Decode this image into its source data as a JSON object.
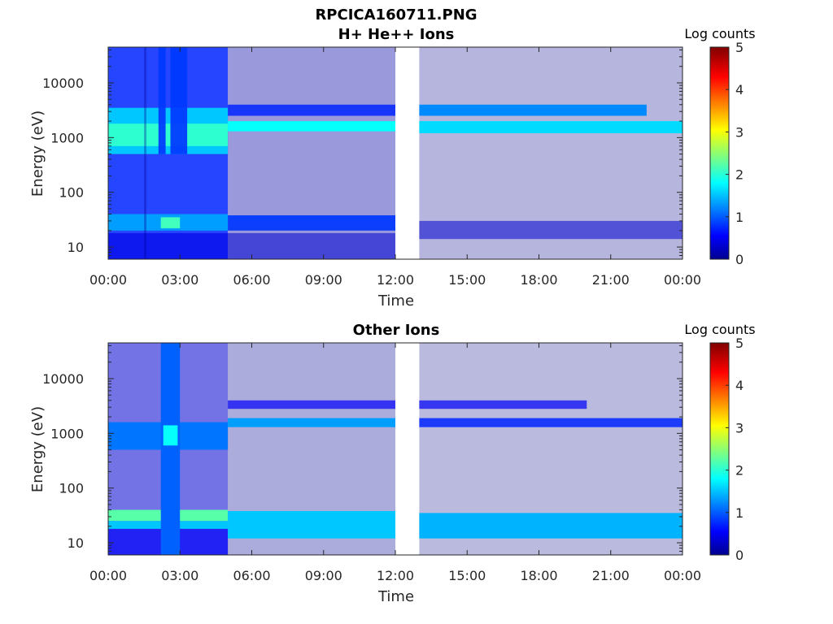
{
  "figure": {
    "title": "RPCICA160711.PNG"
  },
  "chart_data": [
    {
      "type": "heatmap",
      "title": "H+ He++ Ions",
      "xlabel": "Time",
      "ylabel": "Energy (eV)",
      "xlim": [
        "00:00",
        "24:00"
      ],
      "ylim": [
        6,
        45000
      ],
      "yscale": "log",
      "x_ticks": [
        "00:00",
        "03:00",
        "06:00",
        "09:00",
        "12:00",
        "15:00",
        "18:00",
        "21:00",
        "00:00"
      ],
      "y_ticks": [
        "10",
        "100",
        "1000",
        "10000"
      ],
      "data_gap_hours": [
        12.0,
        13.0
      ],
      "colorbar": {
        "label": "Log counts",
        "range": [
          0,
          5
        ],
        "ticks": [
          "0",
          "1",
          "2",
          "3",
          "4",
          "5"
        ],
        "colormap": "jet"
      },
      "bands": [
        {
          "t_start": 0.0,
          "t_end": 5.0,
          "e_low": 6,
          "e_high": 45000,
          "level": 0.8
        },
        {
          "t_start": 0.0,
          "t_end": 5.0,
          "e_low": 500,
          "e_high": 3500,
          "level": 1.6
        },
        {
          "t_start": 0.0,
          "t_end": 5.0,
          "e_low": 700,
          "e_high": 1800,
          "level": 2.1
        },
        {
          "t_start": 0.0,
          "t_end": 5.0,
          "e_low": 20,
          "e_high": 40,
          "level": 1.4
        },
        {
          "t_start": 2.2,
          "t_end": 3.0,
          "e_low": 22,
          "e_high": 35,
          "level": 2.2
        },
        {
          "t_start": 0.0,
          "t_end": 5.0,
          "e_low": 6,
          "e_high": 18,
          "level": 0.5
        },
        {
          "t_start": 5.0,
          "t_end": 12.0,
          "e_low": 6,
          "e_high": 45000,
          "level": 0.2
        },
        {
          "t_start": 5.0,
          "t_end": 12.0,
          "e_low": 1300,
          "e_high": 2000,
          "level": 1.9
        },
        {
          "t_start": 5.0,
          "t_end": 12.0,
          "e_low": 2500,
          "e_high": 4000,
          "level": 0.8
        },
        {
          "t_start": 5.0,
          "t_end": 12.0,
          "e_low": 20,
          "e_high": 38,
          "level": 0.9
        },
        {
          "t_start": 5.0,
          "t_end": 12.0,
          "e_low": 6,
          "e_high": 18,
          "level": 0.4
        },
        {
          "t_start": 13.0,
          "t_end": 24.0,
          "e_low": 6,
          "e_high": 45000,
          "level": 0.05
        },
        {
          "t_start": 13.0,
          "t_end": 22.5,
          "e_low": 2500,
          "e_high": 4000,
          "level": 1.3
        },
        {
          "t_start": 13.0,
          "t_end": 24.0,
          "e_low": 1200,
          "e_high": 2000,
          "level": 1.7
        },
        {
          "t_start": 13.0,
          "t_end": 24.0,
          "e_low": 14,
          "e_high": 30,
          "level": 0.4
        }
      ],
      "spikes": [
        {
          "t_start": 2.1,
          "t_end": 2.4,
          "e_low": 500,
          "e_high": 45000,
          "level": 0.9
        },
        {
          "t_start": 2.6,
          "t_end": 3.3,
          "e_low": 500,
          "e_high": 45000,
          "level": 0.9
        },
        {
          "t_start": 1.5,
          "t_end": 1.6,
          "e_low": 6,
          "e_high": 45000,
          "level": 0.1
        }
      ]
    },
    {
      "type": "heatmap",
      "title": "Other Ions",
      "xlabel": "Time",
      "ylabel": "Energy (eV)",
      "xlim": [
        "00:00",
        "24:00"
      ],
      "ylim": [
        6,
        45000
      ],
      "yscale": "log",
      "x_ticks": [
        "00:00",
        "03:00",
        "06:00",
        "09:00",
        "12:00",
        "15:00",
        "18:00",
        "21:00",
        "00:00"
      ],
      "y_ticks": [
        "10",
        "100",
        "1000",
        "10000"
      ],
      "data_gap_hours": [
        12.0,
        13.0
      ],
      "colorbar": {
        "label": "Log counts",
        "range": [
          0,
          5
        ],
        "ticks": [
          "0",
          "1",
          "2",
          "3",
          "4",
          "5"
        ],
        "colormap": "jet"
      },
      "bands": [
        {
          "t_start": 0.0,
          "t_end": 5.0,
          "e_low": 6,
          "e_high": 45000,
          "level": 0.4
        },
        {
          "t_start": 0.0,
          "t_end": 5.0,
          "e_low": 500,
          "e_high": 1600,
          "level": 1.2
        },
        {
          "t_start": 0.0,
          "t_end": 5.0,
          "e_low": 25,
          "e_high": 40,
          "level": 2.3
        },
        {
          "t_start": 0.0,
          "t_end": 5.0,
          "e_low": 18,
          "e_high": 25,
          "level": 1.6
        },
        {
          "t_start": 0.0,
          "t_end": 5.0,
          "e_low": 6,
          "e_high": 18,
          "level": 0.6
        },
        {
          "t_start": 5.0,
          "t_end": 12.0,
          "e_low": 6,
          "e_high": 45000,
          "level": 0.1
        },
        {
          "t_start": 5.0,
          "t_end": 12.0,
          "e_low": 1300,
          "e_high": 1900,
          "level": 1.4
        },
        {
          "t_start": 5.0,
          "t_end": 12.0,
          "e_low": 2800,
          "e_high": 4000,
          "level": 0.6
        },
        {
          "t_start": 5.0,
          "t_end": 12.0,
          "e_low": 12,
          "e_high": 38,
          "level": 1.6
        },
        {
          "t_start": 13.0,
          "t_end": 24.0,
          "e_low": 6,
          "e_high": 45000,
          "level": 0.02
        },
        {
          "t_start": 13.0,
          "t_end": 20.0,
          "e_low": 2800,
          "e_high": 4000,
          "level": 0.6
        },
        {
          "t_start": 13.0,
          "t_end": 24.0,
          "e_low": 1300,
          "e_high": 1900,
          "level": 0.8
        },
        {
          "t_start": 13.0,
          "t_end": 24.0,
          "e_low": 12,
          "e_high": 35,
          "level": 1.5
        }
      ],
      "spikes": [
        {
          "t_start": 2.2,
          "t_end": 3.0,
          "e_low": 6,
          "e_high": 45000,
          "level": 1.1
        },
        {
          "t_start": 2.3,
          "t_end": 2.9,
          "e_low": 600,
          "e_high": 1400,
          "level": 1.9
        }
      ]
    }
  ]
}
